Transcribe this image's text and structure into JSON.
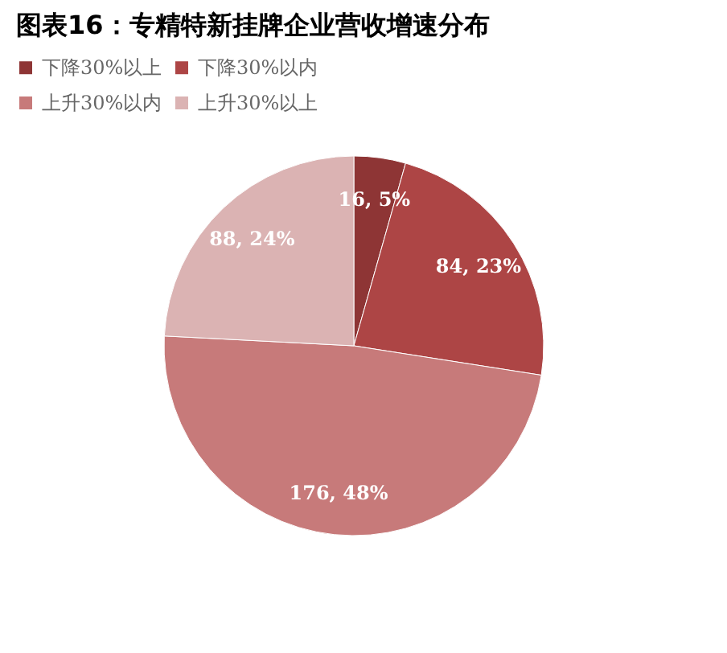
{
  "chart_data": {
    "type": "pie",
    "title": "图表16：专精特新挂牌企业营收增速分布",
    "categories": [
      "下降30%以上",
      "下降30%以内",
      "上升30%以内",
      "上升30%以上"
    ],
    "values": [
      16,
      84,
      176,
      88
    ],
    "colors": [
      "#8e3535",
      "#ad4545",
      "#c77a7a",
      "#dbb3b3"
    ],
    "value_labels": [
      "16, 5%",
      "84, 23%",
      "176, 48%",
      "88, 24%"
    ],
    "legend": "top"
  }
}
